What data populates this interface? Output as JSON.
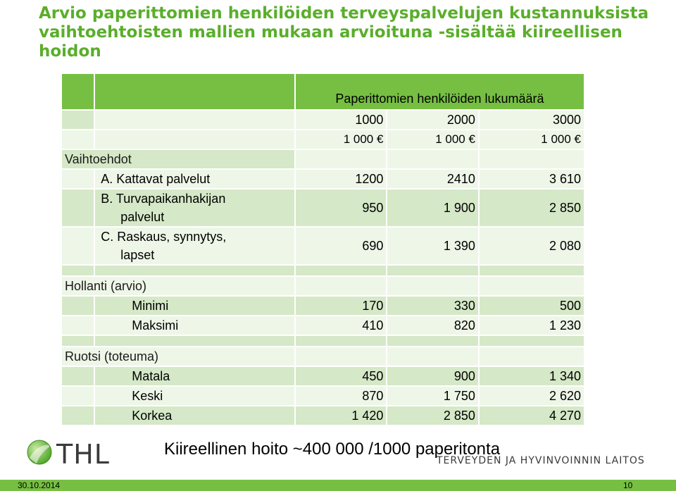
{
  "title": {
    "line1": "Arvio paperittomien henkilöiden terveyspalvelujen kustannuksista",
    "line2": "vaihtoehtoisten mallien mukaan arvioituna -sisältää kiireellisen",
    "line3": "hoidon"
  },
  "table": {
    "group_header": "Paperittomien henkilöiden lukumäärä",
    "counts": [
      "1000",
      "2000",
      "3000"
    ],
    "unit_cost": [
      "1 000 €",
      "1 000 €",
      "1 000 €"
    ],
    "sections": {
      "vaihtoehdot": {
        "label": "Vaihtoehdot",
        "rows": [
          {
            "label_a": "A. Kattavat palvelut",
            "values": [
              "1200",
              "2410",
              "3 610"
            ]
          },
          {
            "label_a": "B. Turvapaikanhakijan",
            "label_b": "palvelut",
            "values": [
              "950",
              "1 900",
              "2 850"
            ]
          },
          {
            "label_a": "C. Raskaus, synnytys,",
            "label_b": "lapset",
            "values": [
              "690",
              "1 390",
              "2 080"
            ]
          }
        ]
      },
      "hollanti": {
        "label": "Hollanti (arvio)",
        "rows": [
          {
            "label": "Minimi",
            "values": [
              "170",
              "330",
              "500"
            ]
          },
          {
            "label": "Maksimi",
            "values": [
              "410",
              "820",
              "1 230"
            ]
          }
        ]
      },
      "ruotsi": {
        "label": "Ruotsi (toteuma)",
        "rows": [
          {
            "label": "Matala",
            "values": [
              "450",
              "900",
              "1 340"
            ]
          },
          {
            "label": "Keski",
            "values": [
              "870",
              "1 750",
              "2 620"
            ]
          },
          {
            "label": "Korkea",
            "values": [
              "1 420",
              "2 850",
              "4 270"
            ]
          }
        ]
      }
    }
  },
  "note": "Kiireellinen hoito ~400 000 /1000 paperitonta",
  "logo": {
    "text": "THL",
    "org": "TERVEYDEN JA HYVINVOINNIN LAITOS"
  },
  "footer": {
    "date": "30.10.2014",
    "page": "10"
  },
  "colors": {
    "header_green": "#76bf43",
    "cell_light_green": "#d5e8c7",
    "title_green": "#5aae2b"
  }
}
